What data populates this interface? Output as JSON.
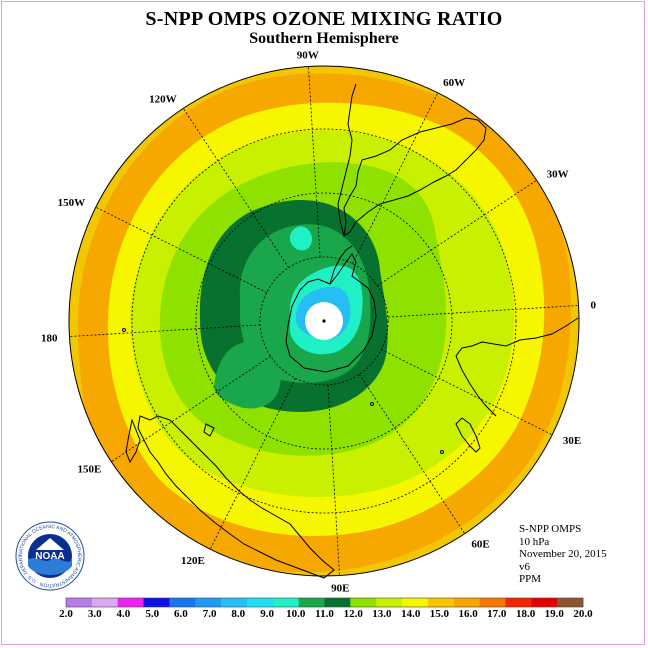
{
  "title": "S-NPP OMPS OZONE MIXING RATIO",
  "subtitle": "Southern Hemisphere",
  "longitude_labels": [
    {
      "text": "90W",
      "lon": -90
    },
    {
      "text": "60W",
      "lon": -60
    },
    {
      "text": "30W",
      "lon": -30
    },
    {
      "text": "0",
      "lon": 0
    },
    {
      "text": "30E",
      "lon": 30
    },
    {
      "text": "60E",
      "lon": 60
    },
    {
      "text": "90E",
      "lon": 90
    },
    {
      "text": "120E",
      "lon": 120
    },
    {
      "text": "150E",
      "lon": 150
    },
    {
      "text": "180",
      "lon": 180
    },
    {
      "text": "150W",
      "lon": -150
    },
    {
      "text": "120W",
      "lon": -120
    }
  ],
  "info": {
    "instrument": "S-NPP OMPS",
    "level": "10 hPa",
    "date": "November 20, 2015",
    "version": "v6",
    "units": "PPM"
  },
  "logo": {
    "name": "NOAA",
    "ring_text": "NATIONAL OCEANIC AND ATMOSPHERIC ADMINISTRATION · U.S. DEPARTMENT OF COMMERCE"
  },
  "colorbar": {
    "labels": [
      "2.0",
      "3.0",
      "4.0",
      "5.0",
      "6.0",
      "7.0",
      "8.0",
      "9.0",
      "10.0",
      "11.0",
      "12.0",
      "13.0",
      "14.0",
      "15.0",
      "16.0",
      "17.0",
      "18.0",
      "19.0",
      "20.0"
    ],
    "colors": [
      "#b57ae6",
      "#dca8f0",
      "#ee22ee",
      "#1010ee",
      "#1a6cf0",
      "#2299f2",
      "#22bdf5",
      "#22ddf0",
      "#20f0c4",
      "#1aa84a",
      "#0f7a32",
      "#066c2e",
      "#8ee000",
      "#c7f000",
      "#f5f500",
      "#f5c400",
      "#f5a400",
      "#f57800",
      "#f52600",
      "#e60000",
      "#885533"
    ],
    "bin_colors": [
      "#b87ce8",
      "#d9aaf0",
      "#ee22ee",
      "#0f10e8",
      "#1877f0",
      "#209af2",
      "#27bdf5",
      "#22ddf0",
      "#1ff0c6",
      "#1aa64b",
      "#08712f",
      "#8fe200",
      "#c8f000",
      "#f6f600",
      "#f7c600",
      "#f5a700",
      "#f57700",
      "#f32500",
      "#e50000",
      "#8b5531"
    ]
  },
  "map_colors": {
    "c_20": "#f2c600",
    "c_19": "#f7a800",
    "c_15": "#f6f600",
    "c_14": "#c8f000",
    "c_13": "#8fe200",
    "c_12": "#08712f",
    "c_11": "#1aa64b",
    "c_10": "#1ff0c6",
    "c_9": "#27bdf5",
    "c_8": "#2299f2"
  }
}
